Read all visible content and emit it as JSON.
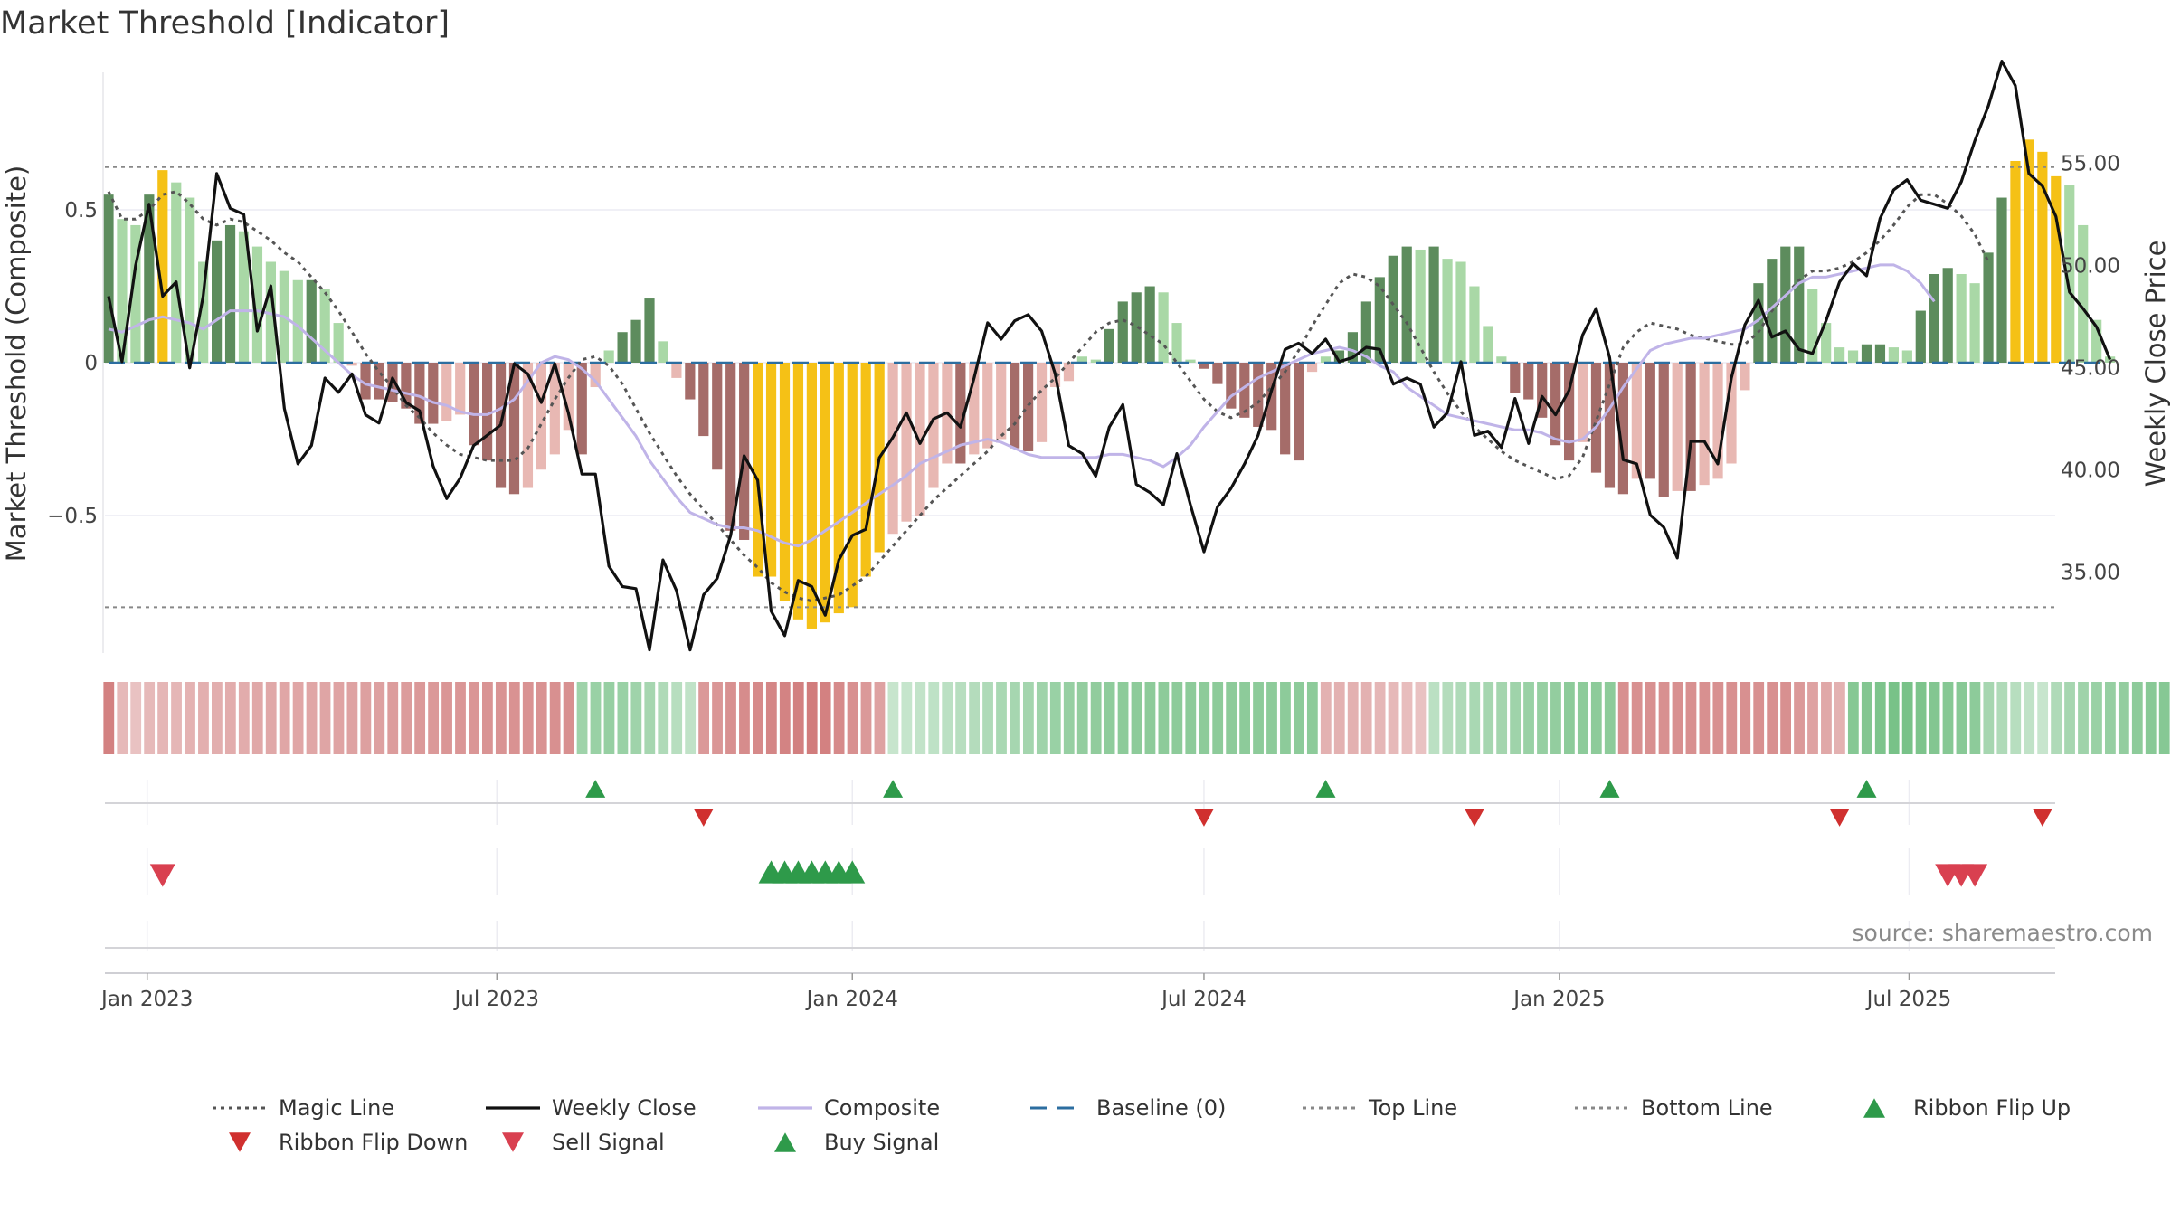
{
  "title": "Market Threshold [Indicator]",
  "source": "source: sharemaestro.com",
  "colors": {
    "bar_strong_up": "#5d8c5d",
    "bar_weak_up": "#a9d8a6",
    "bar_strong_down": "#a56c69",
    "bar_weak_down": "#e8b8b3",
    "bar_extreme": "#f5c116",
    "weekly_close": "#111111",
    "composite": "#c0b4e8",
    "magic_line": "#555555",
    "baseline": "#2c6ea0",
    "threshold_lines": "#888888",
    "ribbon_flip_up": "#2e9a4a",
    "ribbon_flip_down": "#d0302f",
    "sell_signal": "#d94050",
    "buy_signal": "#2e9a4a"
  },
  "chart_data": {
    "type": "bar",
    "start_date": "2022-12-12",
    "frequency": "weekly",
    "left_axis": {
      "label": "Market Threshold (Composite)",
      "ticks": [
        0.5,
        0,
        -0.5
      ],
      "tick_labels": [
        "0.5",
        "0",
        "−0.5"
      ],
      "range": [
        -0.95,
        0.95
      ]
    },
    "right_axis": {
      "label": "Weekly Close Price",
      "ticks": [
        55,
        50,
        45,
        40,
        35
      ],
      "tick_labels": [
        "55.00",
        "50.00",
        "45.00",
        "40.00",
        "35.00"
      ],
      "range": [
        31.05,
        59.45
      ]
    },
    "x_axis": {
      "tick_labels": [
        "Jan 2023",
        "Jul 2023",
        "Jan 2024",
        "Jul 2024",
        "Jan 2025",
        "Jul 2025"
      ],
      "tick_dates": [
        "2023-01-01",
        "2023-07-01",
        "2024-01-01",
        "2024-07-01",
        "2025-01-01",
        "2025-07-01"
      ]
    },
    "top_line": 0.64,
    "bottom_line": -0.8,
    "composite_bars": [
      0.55,
      0.47,
      0.45,
      0.55,
      0.63,
      0.59,
      0.54,
      0.33,
      0.4,
      0.45,
      0.43,
      0.38,
      0.33,
      0.3,
      0.27,
      0.27,
      0.24,
      0.13,
      -0.01,
      -0.12,
      -0.12,
      -0.13,
      -0.15,
      -0.2,
      -0.2,
      -0.19,
      -0.17,
      -0.27,
      -0.32,
      -0.41,
      -0.43,
      -0.41,
      -0.35,
      -0.3,
      -0.22,
      -0.3,
      -0.08,
      0.04,
      0.1,
      0.14,
      0.21,
      0.07,
      -0.05,
      -0.12,
      -0.24,
      -0.35,
      -0.55,
      -0.58,
      -0.7,
      -0.7,
      -0.78,
      -0.84,
      -0.87,
      -0.85,
      -0.82,
      -0.8,
      -0.7,
      -0.62,
      -0.56,
      -0.52,
      -0.5,
      -0.41,
      -0.33,
      -0.33,
      -0.3,
      -0.28,
      -0.25,
      -0.28,
      -0.29,
      -0.26,
      -0.08,
      -0.06,
      0.02,
      0.01,
      0.11,
      0.2,
      0.23,
      0.25,
      0.23,
      0.13,
      0.01,
      -0.02,
      -0.07,
      -0.15,
      -0.18,
      -0.21,
      -0.22,
      -0.3,
      -0.32,
      -0.03,
      0.02,
      0.04,
      0.1,
      0.2,
      0.28,
      0.35,
      0.38,
      0.37,
      0.38,
      0.34,
      0.33,
      0.25,
      0.12,
      0.02,
      -0.1,
      -0.12,
      -0.18,
      -0.27,
      -0.32,
      -0.26,
      -0.36,
      -0.41,
      -0.43,
      -0.38,
      -0.38,
      -0.44,
      -0.42,
      -0.42,
      -0.4,
      -0.38,
      -0.33,
      -0.09,
      0.26,
      0.34,
      0.38,
      0.38,
      0.24,
      0.13,
      0.05,
      0.04,
      0.06,
      0.06,
      0.05,
      0.04,
      0.17,
      0.29,
      0.31,
      0.29,
      0.26,
      0.36,
      0.54,
      0.66,
      0.73,
      0.69,
      0.61,
      0.58,
      0.45,
      0.14,
      0.02
    ],
    "weekly_close": [
      48.5,
      45.3,
      50,
      53,
      48.5,
      49.2,
      45,
      48.5,
      54.5,
      52.8,
      52.5,
      46.8,
      49,
      43,
      40.3,
      41.2,
      44.5,
      43.8,
      44.7,
      42.7,
      42.3,
      44.5,
      43.3,
      42.9,
      40.2,
      38.6,
      39.6,
      41.2,
      41.7,
      42.2,
      45.2,
      44.7,
      43.3,
      45.2,
      42.8,
      39.8,
      39.8,
      35.3,
      34.3,
      34.2,
      31.2,
      35.6,
      34.1,
      31.2,
      33.9,
      34.7,
      36.8,
      40.7,
      39.5,
      33.1,
      31.9,
      34.6,
      34.3,
      32.9,
      35.6,
      36.8,
      37.1,
      40.6,
      41.6,
      42.8,
      41.3,
      42.5,
      42.8,
      42.1,
      44.5,
      47.2,
      46.4,
      47.3,
      47.6,
      46.8,
      44.7,
      41.2,
      40.8,
      39.7,
      42.1,
      43.2,
      39.3,
      38.9,
      38.3,
      40.8,
      38.3,
      36,
      38.2,
      39.1,
      40.3,
      41.7,
      43.9,
      45.9,
      46.2,
      45.7,
      46.4,
      45.3,
      45.5,
      46,
      45.9,
      44.2,
      44.5,
      44.2,
      42.1,
      42.8,
      45.3,
      41.7,
      41.9,
      41.1,
      43.5,
      41.3,
      43.6,
      42.7,
      43.9,
      46.6,
      47.9,
      45.5,
      40.5,
      40.3,
      37.8,
      37.2,
      35.7,
      41.4,
      41.4,
      40.3,
      44.5,
      47.1,
      48.3,
      46.5,
      46.8,
      45.9,
      45.7,
      47.3,
      49.2,
      50.1,
      49.5,
      52.3,
      53.7,
      54.2,
      53.2,
      53,
      52.8,
      54.1,
      56.1,
      57.8,
      60,
      58.8,
      54.5,
      53.9,
      52.4,
      48.7,
      47.9,
      47,
      45.4
    ],
    "composite": [
      0.11,
      0.1,
      0.12,
      0.14,
      0.15,
      0.14,
      0.13,
      0.11,
      0.14,
      0.17,
      0.17,
      0.17,
      0.16,
      0.15,
      0.12,
      0.08,
      0.04,
      0,
      -0.04,
      -0.07,
      -0.08,
      -0.09,
      -0.1,
      -0.11,
      -0.13,
      -0.14,
      -0.16,
      -0.17,
      -0.17,
      -0.15,
      -0.12,
      -0.06,
      0,
      0.02,
      0.01,
      -0.02,
      -0.06,
      -0.12,
      -0.18,
      -0.24,
      -0.32,
      -0.38,
      -0.44,
      -0.49,
      -0.51,
      -0.53,
      -0.54,
      -0.54,
      -0.55,
      -0.57,
      -0.59,
      -0.6,
      -0.58,
      -0.55,
      -0.52,
      -0.49,
      -0.46,
      -0.43,
      -0.4,
      -0.37,
      -0.33,
      -0.31,
      -0.29,
      -0.27,
      -0.26,
      -0.25,
      -0.26,
      -0.28,
      -0.3,
      -0.31,
      -0.31,
      -0.31,
      -0.31,
      -0.31,
      -0.3,
      -0.3,
      -0.31,
      -0.32,
      -0.34,
      -0.31,
      -0.27,
      -0.21,
      -0.16,
      -0.11,
      -0.08,
      -0.05,
      -0.03,
      -0.01,
      0.01,
      0.03,
      0.04,
      0.05,
      0.04,
      0.02,
      -0.01,
      -0.03,
      -0.08,
      -0.11,
      -0.14,
      -0.17,
      -0.18,
      -0.19,
      -0.2,
      -0.21,
      -0.22,
      -0.22,
      -0.23,
      -0.25,
      -0.26,
      -0.25,
      -0.21,
      -0.15,
      -0.08,
      -0.02,
      0.04,
      0.06,
      0.07,
      0.08,
      0.08,
      0.09,
      0.1,
      0.11,
      0.14,
      0.18,
      0.22,
      0.26,
      0.28,
      0.28,
      0.29,
      0.3,
      0.31,
      0.32,
      0.32,
      0.3,
      0.26,
      0.2
    ],
    "magic_line": [
      0.56,
      0.47,
      0.47,
      0.5,
      0.55,
      0.56,
      0.52,
      0.47,
      0.45,
      0.47,
      0.46,
      0.43,
      0.4,
      0.36,
      0.33,
      0.28,
      0.23,
      0.17,
      0.1,
      0.03,
      -0.03,
      -0.08,
      -0.14,
      -0.18,
      -0.23,
      -0.27,
      -0.3,
      -0.31,
      -0.32,
      -0.32,
      -0.32,
      -0.28,
      -0.2,
      -0.12,
      -0.05,
      0.01,
      0.02,
      -0.01,
      -0.07,
      -0.15,
      -0.23,
      -0.3,
      -0.37,
      -0.43,
      -0.48,
      -0.53,
      -0.58,
      -0.63,
      -0.67,
      -0.72,
      -0.75,
      -0.77,
      -0.78,
      -0.77,
      -0.76,
      -0.73,
      -0.7,
      -0.65,
      -0.6,
      -0.55,
      -0.5,
      -0.45,
      -0.41,
      -0.37,
      -0.33,
      -0.29,
      -0.24,
      -0.2,
      -0.14,
      -0.09,
      -0.05,
      0,
      0.05,
      0.1,
      0.13,
      0.14,
      0.12,
      0.09,
      0.06,
      0,
      -0.06,
      -0.12,
      -0.16,
      -0.18,
      -0.16,
      -0.13,
      -0.08,
      -0.03,
      0.04,
      0.12,
      0.19,
      0.26,
      0.29,
      0.28,
      0.25,
      0.19,
      0.13,
      0.05,
      -0.03,
      -0.1,
      -0.16,
      -0.21,
      -0.25,
      -0.29,
      -0.32,
      -0.34,
      -0.36,
      -0.38,
      -0.37,
      -0.31,
      -0.19,
      -0.07,
      0.05,
      0.1,
      0.13,
      0.12,
      0.11,
      0.09,
      0.08,
      0.07,
      0.06,
      0.06,
      0.1,
      0.17,
      0.22,
      0.27,
      0.3,
      0.3,
      0.31,
      0.33,
      0.36,
      0.4,
      0.45,
      0.51,
      0.55,
      0.55,
      0.52,
      0.48,
      0.42,
      0.33
    ],
    "ribbon_intensity": [
      -0.55,
      -0.2,
      -0.15,
      -0.2,
      -0.22,
      -0.22,
      -0.24,
      -0.26,
      -0.27,
      -0.28,
      -0.28,
      -0.3,
      -0.3,
      -0.32,
      -0.32,
      -0.32,
      -0.33,
      -0.34,
      -0.35,
      -0.36,
      -0.36,
      -0.38,
      -0.38,
      -0.4,
      -0.4,
      -0.42,
      -0.42,
      -0.42,
      -0.43,
      -0.43,
      -0.44,
      -0.44,
      -0.44,
      -0.45,
      -0.45,
      0.35,
      0.38,
      0.4,
      0.38,
      0.35,
      0.3,
      0.25,
      0.2,
      0.15,
      -0.4,
      -0.42,
      -0.45,
      -0.48,
      -0.5,
      -0.52,
      -0.54,
      -0.56,
      -0.58,
      -0.55,
      -0.5,
      -0.45,
      -0.4,
      -0.35,
      0.1,
      0.12,
      0.14,
      0.16,
      0.18,
      0.2,
      0.22,
      0.25,
      0.28,
      0.3,
      0.32,
      0.35,
      0.38,
      0.4,
      0.42,
      0.43,
      0.44,
      0.45,
      0.45,
      0.45,
      0.45,
      0.45,
      0.45,
      0.45,
      0.45,
      0.45,
      0.45,
      0.45,
      0.45,
      0.45,
      0.45,
      0.45,
      -0.25,
      -0.25,
      -0.25,
      -0.25,
      -0.22,
      -0.2,
      -0.18,
      -0.15,
      0.18,
      0.22,
      0.25,
      0.28,
      0.3,
      0.32,
      0.35,
      0.38,
      0.4,
      0.42,
      0.45,
      0.45,
      0.45,
      0.45,
      -0.45,
      -0.45,
      -0.45,
      -0.45,
      -0.45,
      -0.45,
      -0.45,
      -0.45,
      -0.45,
      -0.45,
      -0.45,
      -0.45,
      -0.45,
      -0.4,
      -0.35,
      -0.3,
      -0.25,
      0.5,
      0.52,
      0.55,
      0.58,
      0.58,
      0.55,
      0.52,
      0.5,
      0.48,
      0.45,
      0.3,
      0.25,
      0.2,
      0.15,
      0.1,
      0.25,
      0.3,
      0.35,
      0.38,
      0.4,
      0.42,
      0.45,
      0.48,
      0.5,
      0.5,
      0.48,
      0.45,
      0.42,
      0.4,
      -0.3
    ],
    "ribbon_flip_up_weeks": [
      36,
      58,
      90,
      111,
      130
    ],
    "ribbon_flip_down_weeks": [
      44,
      81,
      101,
      128,
      143
    ],
    "sell_signal_weeks": [
      4,
      136,
      137,
      138
    ],
    "buy_signal_weeks": [
      49,
      50,
      51,
      52,
      53,
      54,
      55
    ]
  },
  "legend": [
    {
      "label": "Magic Line",
      "symbol": "dotted",
      "color_key": "magic_line"
    },
    {
      "label": "Weekly Close",
      "symbol": "line",
      "color_key": "weekly_close"
    },
    {
      "label": "Composite",
      "symbol": "line",
      "color_key": "composite"
    },
    {
      "label": "Baseline (0)",
      "symbol": "dashed",
      "color_key": "baseline"
    },
    {
      "label": "Top Line",
      "symbol": "dotted",
      "color_key": "threshold_lines"
    },
    {
      "label": "Bottom Line",
      "symbol": "dotted",
      "color_key": "threshold_lines"
    },
    {
      "label": "Ribbon Flip Up",
      "symbol": "triangle-up",
      "color_key": "ribbon_flip_up"
    },
    {
      "label": "Ribbon Flip Down",
      "symbol": "triangle-down",
      "color_key": "ribbon_flip_down"
    },
    {
      "label": "Sell Signal",
      "symbol": "triangle-down",
      "color_key": "sell_signal"
    },
    {
      "label": "Buy Signal",
      "symbol": "triangle-up",
      "color_key": "buy_signal"
    }
  ]
}
